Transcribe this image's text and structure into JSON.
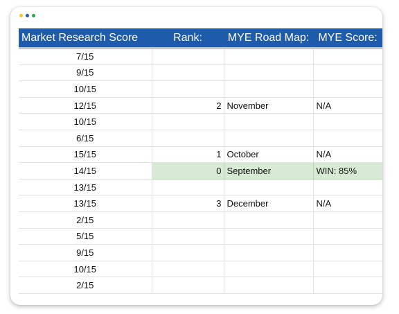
{
  "window": {
    "dots": [
      {
        "name": "yellow",
        "color": "#f5c518"
      },
      {
        "name": "blue",
        "color": "#1e5bab"
      },
      {
        "name": "green",
        "color": "#2aa54a"
      }
    ]
  },
  "colors": {
    "header_bg": "#1e5bab",
    "header_text": "#ffffff",
    "highlight_bg": "#d7ead3"
  },
  "table": {
    "headers": [
      "Market Research Score",
      "Rank:",
      "MYE Road Map:",
      "MYE Score:"
    ],
    "rows": [
      {
        "score": "7/15",
        "rank": "",
        "roadmap": "",
        "mye": ""
      },
      {
        "score": "9/15",
        "rank": "",
        "roadmap": "",
        "mye": ""
      },
      {
        "score": "10/15",
        "rank": "",
        "roadmap": "",
        "mye": ""
      },
      {
        "score": "12/15",
        "rank": "2",
        "roadmap": "November",
        "mye": "N/A"
      },
      {
        "score": "10/15",
        "rank": "",
        "roadmap": "",
        "mye": ""
      },
      {
        "score": "6/15",
        "rank": "",
        "roadmap": "",
        "mye": ""
      },
      {
        "score": "15/15",
        "rank": "1",
        "roadmap": "October",
        "mye": "N/A"
      },
      {
        "score": "14/15",
        "rank": "0",
        "roadmap": "September",
        "mye": "WIN: 85%",
        "highlight": true
      },
      {
        "score": "13/15",
        "rank": "",
        "roadmap": "",
        "mye": ""
      },
      {
        "score": "13/15",
        "rank": "3",
        "roadmap": "December",
        "mye": "N/A"
      },
      {
        "score": "2/15",
        "rank": "",
        "roadmap": "",
        "mye": ""
      },
      {
        "score": "5/15",
        "rank": "",
        "roadmap": "",
        "mye": ""
      },
      {
        "score": "9/15",
        "rank": "",
        "roadmap": "",
        "mye": ""
      },
      {
        "score": "10/15",
        "rank": "",
        "roadmap": "",
        "mye": ""
      },
      {
        "score": "2/15",
        "rank": "",
        "roadmap": "",
        "mye": ""
      }
    ]
  }
}
